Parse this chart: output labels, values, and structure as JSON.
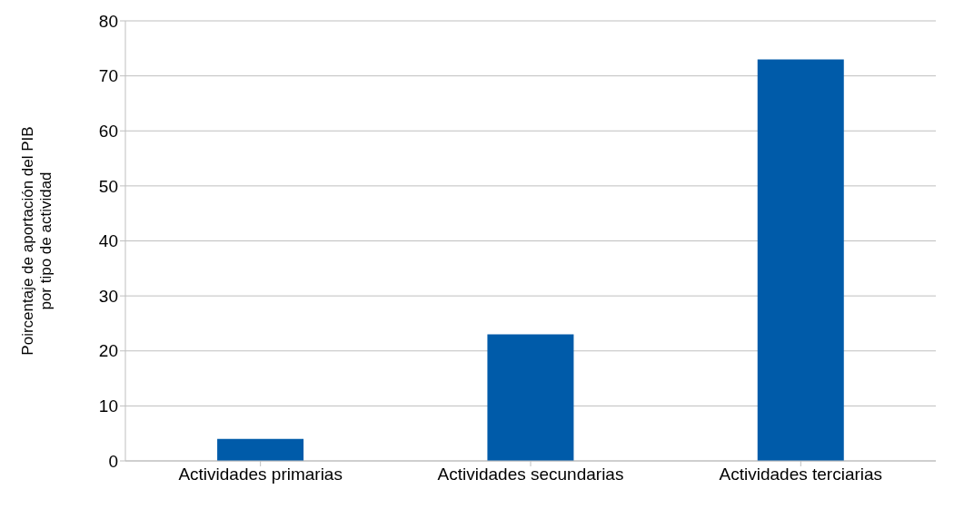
{
  "chart_data": {
    "type": "bar",
    "ylabel": "Poircentaje de aportación del PIB\npor tipo de actividad",
    "categories": [
      "Actividades primarias",
      "Actividades secundarias",
      "Actividades terciarias"
    ],
    "values": [
      4,
      23,
      73
    ],
    "color": "#005ba9",
    "ylim": [
      0,
      80
    ],
    "yticks": [
      0,
      10,
      20,
      30,
      40,
      50,
      60,
      70,
      80
    ],
    "grid": "y"
  }
}
